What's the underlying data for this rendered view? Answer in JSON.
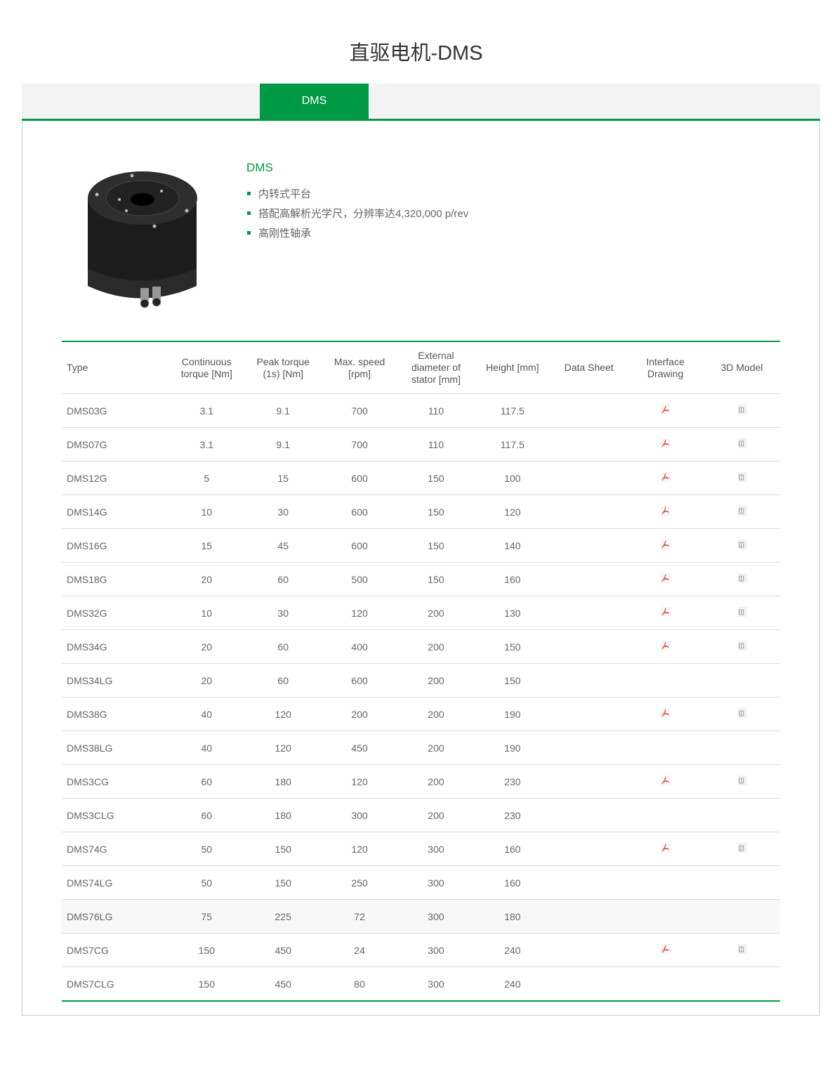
{
  "title": "直驱电机-DMS",
  "tabs": [
    {
      "label": "DMS",
      "active": true
    }
  ],
  "product": {
    "name": "DMS",
    "features": [
      "内转式平台",
      "搭配高解析光学尺，分辨率达4,320,000 p/rev",
      "高刚性轴承"
    ]
  },
  "colors": {
    "accent": "#009a44",
    "pdf": "#e03a2f"
  },
  "table": {
    "headers": [
      "Type",
      "Continuous torque [Nm]",
      "Peak torque (1s) [Nm]",
      "Max. speed [rpm]",
      "External diameter of stator [mm]",
      "Height [mm]",
      "Data Sheet",
      "Interface Drawing",
      "3D Model"
    ],
    "rows": [
      [
        "DMS03G",
        "3.1",
        "9.1",
        "700",
        "110",
        "117.5",
        true
      ],
      [
        "DMS07G",
        "3.1",
        "9.1",
        "700",
        "110",
        "117.5",
        true
      ],
      [
        "DMS12G",
        "5",
        "15",
        "600",
        "150",
        "100",
        true
      ],
      [
        "DMS14G",
        "10",
        "30",
        "600",
        "150",
        "120",
        true
      ],
      [
        "DMS16G",
        "15",
        "45",
        "600",
        "150",
        "140",
        true
      ],
      [
        "DMS18G",
        "20",
        "60",
        "500",
        "150",
        "160",
        true
      ],
      [
        "DMS32G",
        "10",
        "30",
        "120",
        "200",
        "130",
        true
      ],
      [
        "DMS34G",
        "20",
        "60",
        "400",
        "200",
        "150",
        true
      ],
      [
        "DMS34LG",
        "20",
        "60",
        "600",
        "200",
        "150",
        false
      ],
      [
        "DMS38G",
        "40",
        "120",
        "200",
        "200",
        "190",
        true
      ],
      [
        "DMS38LG",
        "40",
        "120",
        "450",
        "200",
        "190",
        false
      ],
      [
        "DMS3CG",
        "60",
        "180",
        "120",
        "200",
        "230",
        true
      ],
      [
        "DMS3CLG",
        "60",
        "180",
        "300",
        "200",
        "230",
        false
      ],
      [
        "DMS74G",
        "50",
        "150",
        "120",
        "300",
        "160",
        true
      ],
      [
        "DMS74LG",
        "50",
        "150",
        "250",
        "300",
        "160",
        false
      ],
      [
        "DMS76LG",
        "75",
        "225",
        "72",
        "300",
        "180",
        false
      ],
      [
        "DMS7CG",
        "150",
        "450",
        "24",
        "300",
        "240",
        true
      ],
      [
        "DMS7CLG",
        "150",
        "450",
        "80",
        "300",
        "240",
        false
      ]
    ]
  }
}
